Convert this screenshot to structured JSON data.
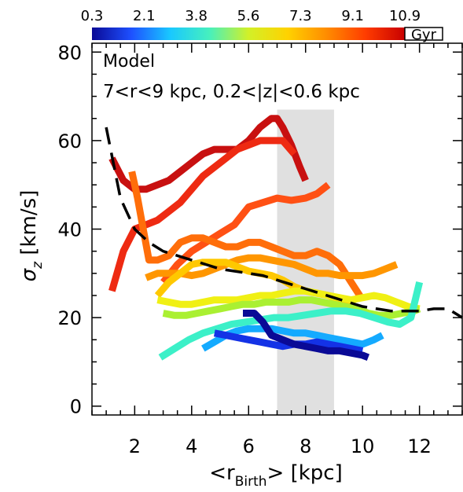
{
  "chart_data": {
    "type": "line",
    "annotations": [
      "Model",
      "7<r<9 kpc, 0.2<|z|<0.6 kpc"
    ],
    "xlabel": {
      "pre": "<r",
      "sub": "Birth",
      "post": "> [kpc]"
    },
    "ylabel": {
      "sym": "σ",
      "sub": "z",
      "post": " [km/s]"
    },
    "xlim": [
      0.5,
      13.5
    ],
    "ylim": [
      -2,
      82
    ],
    "xticks": [
      2,
      4,
      6,
      8,
      10,
      12
    ],
    "yticks": [
      0,
      20,
      40,
      60,
      80
    ],
    "shaded_band": [
      7,
      9
    ],
    "colorbar": {
      "ticks": [
        "0.3",
        "2.1",
        "3.8",
        "5.6",
        "7.3",
        "9.1",
        "10.9"
      ],
      "unit": "Gyr",
      "colors": [
        "#0a0a96",
        "#1e50ff",
        "#19c8ff",
        "#46f0be",
        "#d2f028",
        "#ffd200",
        "#ff8c00",
        "#ff3c00",
        "#c80000"
      ]
    },
    "series": [
      {
        "age": 10.9,
        "color": "#c81010",
        "x": [
          1.2,
          1.6,
          2.0,
          2.4,
          2.8,
          3.2,
          3.6,
          4.0,
          4.4,
          4.8,
          5.2,
          5.6,
          6.0,
          6.4,
          6.8,
          7.0,
          7.2,
          7.5,
          7.8,
          8.0
        ],
        "y": [
          56,
          51,
          49,
          49,
          50,
          51,
          53,
          55,
          57,
          58,
          58,
          58,
          60,
          63,
          65,
          65,
          63,
          59,
          54,
          51
        ]
      },
      {
        "age": 10.0,
        "color": "#ee2a12",
        "x": [
          1.2,
          1.6,
          2.0,
          2.4,
          2.8,
          3.2,
          3.6,
          4.0,
          4.4,
          4.8,
          5.2,
          5.6,
          6.0,
          6.4,
          6.8,
          7.2,
          7.6
        ],
        "y": [
          26,
          35,
          40,
          41,
          42,
          44,
          46,
          49,
          52,
          54,
          56,
          58,
          59,
          60,
          60,
          60,
          57
        ]
      },
      {
        "age": 9.5,
        "color": "#ff5014",
        "x": [
          3.0,
          3.5,
          4.0,
          4.5,
          5.0,
          5.5,
          6.0,
          6.5,
          7.0,
          7.5,
          8.0,
          8.4,
          8.8
        ],
        "y": [
          28,
          32,
          35,
          37,
          39,
          41,
          45,
          46,
          47,
          46.5,
          47,
          48,
          50
        ]
      },
      {
        "age": 9.1,
        "color": "#ff6e0a",
        "x": [
          1.9,
          2.1,
          2.3,
          2.5,
          2.8,
          3.2,
          3.6,
          4.0,
          4.4,
          4.8,
          5.2,
          5.6,
          6.0,
          6.4,
          6.8,
          7.2,
          7.6,
          8.0,
          8.4,
          8.8,
          9.2,
          9.6,
          10.0
        ],
        "y": [
          53,
          47,
          40,
          33,
          33,
          34,
          37,
          38,
          38,
          37,
          36,
          36,
          37,
          37,
          36,
          35,
          34,
          34,
          35,
          34,
          32,
          28,
          24
        ]
      },
      {
        "age": 8.2,
        "color": "#ff9600",
        "x": [
          2.4,
          2.8,
          3.2,
          3.6,
          4.0,
          4.4,
          4.8,
          5.2,
          5.6,
          6.0,
          6.4,
          6.8,
          7.2,
          7.6,
          8.0,
          8.4,
          8.8,
          9.2,
          9.6,
          10.0,
          10.4,
          10.8,
          11.2
        ],
        "y": [
          29,
          30,
          30,
          30,
          29.5,
          30,
          31,
          32,
          33,
          33.5,
          33.5,
          33,
          32.5,
          32,
          31,
          30,
          30,
          29.5,
          29.5,
          29.5,
          30,
          31,
          32
        ]
      },
      {
        "age": 7.3,
        "color": "#ffc800",
        "x": [
          2.8,
          3.2,
          3.6,
          4.0,
          4.4,
          4.8,
          5.2,
          5.6,
          6.0,
          6.4,
          6.8,
          7.2,
          7.6,
          8.0,
          8.4,
          8.8,
          9.2,
          9.6
        ],
        "y": [
          25,
          28,
          30,
          32,
          32.5,
          32.5,
          32.5,
          31.5,
          30.5,
          30,
          29.5,
          28.5,
          27,
          26,
          25.5,
          25,
          24,
          23
        ]
      },
      {
        "age": 6.4,
        "color": "#f0f014",
        "x": [
          2.8,
          3.2,
          3.6,
          4.0,
          4.4,
          4.8,
          5.2,
          5.6,
          6.0,
          6.4,
          6.8,
          7.2,
          7.6,
          8.0,
          8.4,
          8.8,
          9.2,
          9.6,
          10.0,
          10.4,
          10.8,
          11.2,
          11.6,
          12.0
        ],
        "y": [
          24,
          23.5,
          23,
          23,
          23.5,
          24,
          24,
          24,
          24.5,
          25,
          25,
          25.5,
          26,
          26,
          25.5,
          25,
          24.5,
          24,
          24.5,
          25,
          24.5,
          23.5,
          22.5,
          22
        ]
      },
      {
        "age": 5.6,
        "color": "#aaf032",
        "x": [
          3.0,
          3.4,
          3.8,
          4.2,
          4.6,
          5.0,
          5.4,
          5.8,
          6.2,
          6.6,
          7.0,
          7.4,
          7.8,
          8.2,
          8.6,
          9.0,
          9.4,
          9.8,
          10.2,
          10.6,
          11.0,
          11.4,
          11.8,
          12.0
        ],
        "y": [
          21,
          20.5,
          20.5,
          21,
          21.5,
          22,
          22.5,
          23,
          23,
          23.5,
          23.5,
          23.5,
          24,
          24,
          23.5,
          23,
          22.5,
          22,
          21,
          20.5,
          20.5,
          21,
          21.5,
          22
        ]
      },
      {
        "age": 4.7,
        "color": "#3cf0c8",
        "x": [
          2.9,
          3.4,
          3.9,
          4.4,
          4.9,
          5.4,
          5.9,
          6.4,
          6.9,
          7.4,
          7.9,
          8.4,
          8.9,
          9.4,
          9.9,
          10.4,
          10.9,
          11.3,
          11.7,
          12.0
        ],
        "y": [
          11,
          13,
          15,
          16.5,
          17.5,
          18.5,
          19,
          19.5,
          20,
          20,
          20.5,
          21,
          21.5,
          21.5,
          21,
          20,
          19,
          18.5,
          20,
          28
        ]
      },
      {
        "age": 3.8,
        "color": "#14aaff",
        "x": [
          4.4,
          4.8,
          5.2,
          5.6,
          6.0,
          6.4,
          6.8,
          7.2,
          7.6,
          8.0,
          8.4,
          8.8,
          9.2,
          9.6,
          10.0,
          10.4,
          10.7
        ],
        "y": [
          13,
          14.5,
          16,
          17,
          17.5,
          17.5,
          17.5,
          17,
          16.5,
          16.5,
          16,
          15.5,
          15,
          14.5,
          14,
          15,
          16
        ]
      },
      {
        "age": 2.1,
        "color": "#1432e6",
        "x": [
          4.8,
          5.2,
          5.6,
          6.0,
          6.4,
          6.8,
          7.2,
          7.6,
          8.0,
          8.4,
          8.8,
          9.2,
          9.6,
          10.0
        ],
        "y": [
          16.5,
          16,
          15.5,
          15,
          14.5,
          14,
          13.5,
          14,
          14,
          14.5,
          14,
          13.5,
          13,
          12.5
        ]
      },
      {
        "age": 0.3,
        "color": "#0a0a96",
        "x": [
          5.8,
          6.2,
          6.5,
          6.8,
          7.2,
          7.6,
          8.0,
          8.4,
          8.8,
          9.2,
          9.6,
          10.0,
          10.2
        ],
        "y": [
          21,
          21,
          19,
          16,
          15,
          14,
          13.5,
          13,
          12.5,
          12.5,
          12,
          11.5,
          11
        ]
      }
    ],
    "dashed_series": {
      "color": "#000000",
      "x": [
        1.0,
        1.5,
        2.0,
        2.5,
        3.0,
        3.5,
        4.0,
        4.5,
        5.0,
        5.5,
        6.0,
        6.5,
        7.0,
        7.5,
        8.0,
        8.5,
        9.0,
        9.5,
        10.0,
        10.5,
        11.0,
        11.5,
        12.0,
        12.5,
        13.0,
        13.5
      ],
      "y": [
        63,
        47,
        40,
        37,
        35,
        34,
        33,
        32,
        31,
        30.5,
        30,
        29.5,
        28.5,
        27.5,
        26.5,
        25.5,
        24.5,
        23.5,
        22.5,
        22,
        21.5,
        21.5,
        21.5,
        22,
        22,
        20
      ]
    }
  }
}
